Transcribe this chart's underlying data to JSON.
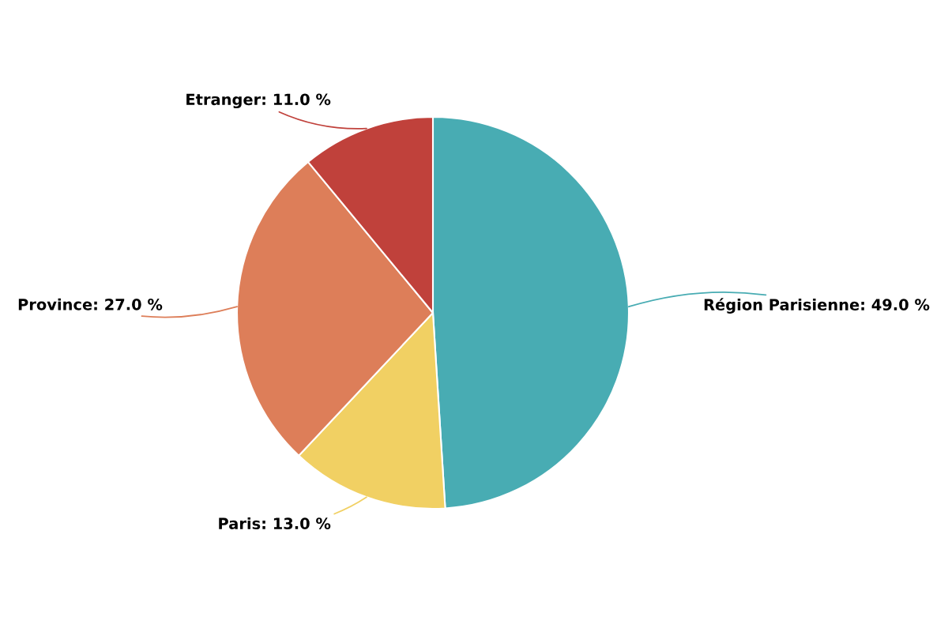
{
  "chart_data": {
    "type": "pie",
    "categories": [
      "Région Parisienne",
      "Paris",
      "Province",
      "Etranger"
    ],
    "values": [
      49.0,
      13.0,
      27.0,
      11.0
    ],
    "value_labels": [
      "49.0 %",
      "13.0 %",
      "27.0 %",
      "11.0 %"
    ],
    "colors": [
      "#48acb3",
      "#f1d063",
      "#dd7e59",
      "#c0413b"
    ],
    "legend": false
  }
}
